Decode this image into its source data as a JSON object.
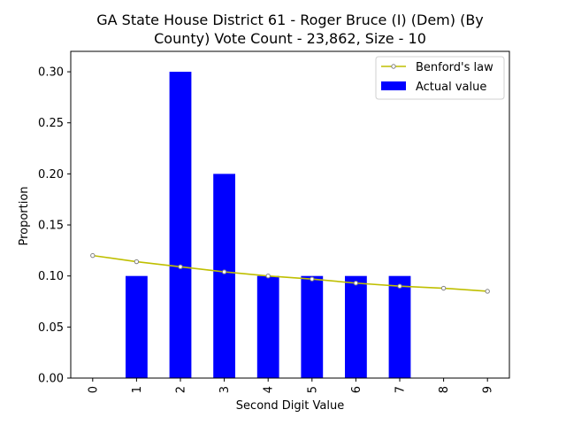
{
  "chart_data": {
    "type": "bar",
    "title_lines": [
      "GA State House District 61 - Roger Bruce (I) (Dem) (By",
      "County) Vote Count - 23,862, Size - 10"
    ],
    "xlabel": "Second Digit Value",
    "ylabel": "Proportion",
    "categories": [
      "0",
      "1",
      "2",
      "3",
      "4",
      "5",
      "6",
      "7",
      "8",
      "9"
    ],
    "ylim": [
      0,
      0.32
    ],
    "yticks": [
      0.0,
      0.05,
      0.1,
      0.15,
      0.2,
      0.25,
      0.3
    ],
    "ytick_labels": [
      "0.00",
      "0.05",
      "0.10",
      "0.15",
      "0.20",
      "0.25",
      "0.30"
    ],
    "grid": false,
    "legend_position": "top-right",
    "series": [
      {
        "name": "Actual value",
        "kind": "bar",
        "color": "#0000ff",
        "values": [
          0.0,
          0.1,
          0.3,
          0.2,
          0.1,
          0.1,
          0.1,
          0.1,
          0.0,
          0.0
        ]
      },
      {
        "name": "Benford's law",
        "kind": "line",
        "color": "#bfbf00",
        "marker_edge": "#808080",
        "values": [
          0.12,
          0.114,
          0.109,
          0.104,
          0.1,
          0.097,
          0.093,
          0.09,
          0.088,
          0.085
        ]
      }
    ]
  }
}
